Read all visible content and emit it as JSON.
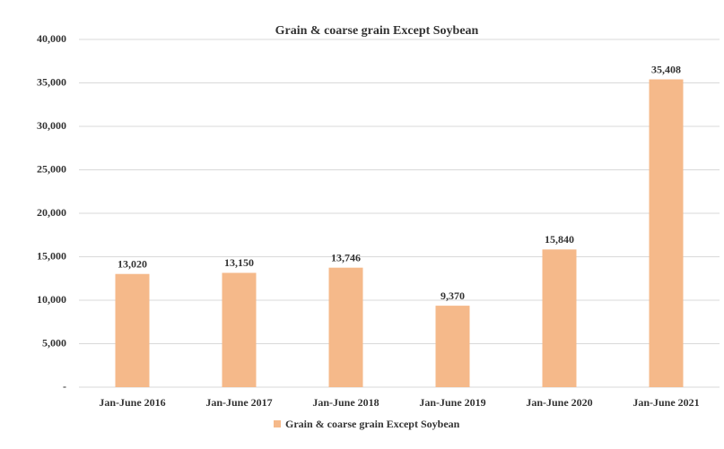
{
  "chart_data": {
    "type": "bar",
    "title": "Grain & coarse grain Except Soybean",
    "categories": [
      "Jan-June 2016",
      "Jan-June 2017",
      "Jan-June 2018",
      "Jan-June 2019",
      "Jan-June 2020",
      "Jan-June 2021"
    ],
    "series": [
      {
        "name": "Grain & coarse grain Except Soybean",
        "color": "#f5b98a",
        "values": [
          13020,
          13150,
          13746,
          9370,
          15840,
          35408
        ],
        "value_labels": [
          "13,020",
          "13,150",
          "13,746",
          "9,370",
          "15,840",
          "35,408"
        ]
      }
    ],
    "ylim": [
      0,
      40000
    ],
    "yticks": [
      {
        "value": 0,
        "label": "-"
      },
      {
        "value": 5000,
        "label": "5,000"
      },
      {
        "value": 10000,
        "label": "10,000"
      },
      {
        "value": 15000,
        "label": "15,000"
      },
      {
        "value": 20000,
        "label": "20,000"
      },
      {
        "value": 25000,
        "label": "25,000"
      },
      {
        "value": 30000,
        "label": "30,000"
      },
      {
        "value": 35000,
        "label": "35,000"
      },
      {
        "value": 40000,
        "label": "40,000"
      }
    ],
    "grid": true,
    "legend": "bottom"
  }
}
